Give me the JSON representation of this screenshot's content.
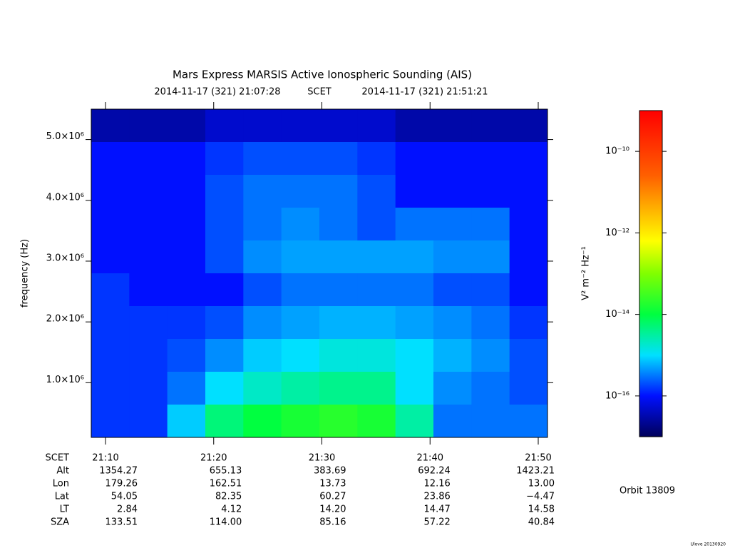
{
  "chart_data": {
    "type": "spectrogram",
    "title": "Mars Express MARSIS Active Ionospheric Sounding (AIS)",
    "start_time": "2014-11-17 (321) 21:07:28",
    "time_system": "SCET",
    "end_time": "2014-11-17 (321) 21:51:21",
    "ylabel": "frequency (Hz)",
    "ylim": [
      100000,
      5500000
    ],
    "yticks": [
      {
        "value": 1000000,
        "label": "1.0×10⁶"
      },
      {
        "value": 2000000,
        "label": "2.0×10⁶"
      },
      {
        "value": 3000000,
        "label": "3.0×10⁶"
      },
      {
        "value": 4000000,
        "label": "4.0×10⁶"
      },
      {
        "value": 5000000,
        "label": "5.0×10⁶"
      }
    ],
    "z": [
      [
        3e-17,
        3e-17,
        3e-17,
        5e-17,
        5e-17,
        5e-17,
        5e-17,
        5e-17,
        3e-17,
        3e-17,
        3e-17,
        3e-17
      ],
      [
        1e-16,
        1e-16,
        1e-16,
        1.5e-16,
        2e-16,
        2e-16,
        2e-16,
        1.5e-16,
        1e-16,
        1e-16,
        1e-16,
        1e-16
      ],
      [
        1e-16,
        1e-16,
        1e-16,
        2e-16,
        3e-16,
        3e-16,
        3e-16,
        2e-16,
        1e-16,
        1e-16,
        1e-16,
        1e-16
      ],
      [
        1e-16,
        1e-16,
        1e-16,
        2e-16,
        3e-16,
        4e-16,
        3e-16,
        2e-16,
        3e-16,
        3e-16,
        3e-16,
        1e-16
      ],
      [
        1e-16,
        1e-16,
        1e-16,
        2e-16,
        4e-16,
        5e-16,
        5e-16,
        5e-16,
        5e-16,
        4e-16,
        4e-16,
        1e-16
      ],
      [
        1.5e-16,
        1e-16,
        1e-16,
        1e-16,
        2e-16,
        3e-16,
        3e-16,
        3e-16,
        3e-16,
        2e-16,
        2e-16,
        1e-16
      ],
      [
        1.5e-16,
        1.5e-16,
        1.5e-16,
        2e-16,
        4e-16,
        5e-16,
        6e-16,
        6e-16,
        5e-16,
        4e-16,
        3e-16,
        1.5e-16
      ],
      [
        1.5e-16,
        1.5e-16,
        2e-16,
        4e-16,
        8e-16,
        1e-15,
        1.5e-15,
        1.5e-15,
        1e-15,
        6e-16,
        4e-16,
        2e-16
      ],
      [
        1.5e-16,
        1.5e-16,
        3e-16,
        1e-15,
        2e-15,
        3e-15,
        4e-15,
        4e-15,
        1e-15,
        4e-16,
        3e-16,
        2e-16
      ],
      [
        1.5e-16,
        1.5e-16,
        8e-16,
        5e-15,
        1e-14,
        1.5e-14,
        2e-14,
        1.5e-14,
        3e-15,
        3e-16,
        3e-16,
        3e-16
      ]
    ],
    "colorbar_label": "V² m⁻² Hz⁻¹",
    "zlim": [
      1e-17,
      1e-09
    ],
    "zscale": "log",
    "zticks": [
      {
        "value": 1e-10,
        "label": "10⁻¹⁰"
      },
      {
        "value": 1e-12,
        "label": "10⁻¹²"
      },
      {
        "value": 1e-14,
        "label": "10⁻¹⁴"
      },
      {
        "value": 1e-16,
        "label": "10⁻¹⁶"
      }
    ],
    "ephemeris": {
      "row_labels": [
        "SCET",
        "Alt",
        "Lon",
        "Lat",
        "LT",
        "SZA"
      ],
      "rows": [
        [
          "21:10",
          "21:20",
          "21:30",
          "21:40",
          "21:50"
        ],
        [
          "1354.27",
          "655.13",
          "383.69",
          "692.24",
          "1423.21"
        ],
        [
          "179.26",
          "162.51",
          "13.73",
          "12.16",
          "13.00"
        ],
        [
          "54.05",
          "82.35",
          "60.27",
          "23.86",
          "−4.47"
        ],
        [
          "2.84",
          "4.12",
          "14.20",
          "14.47",
          "14.58"
        ],
        [
          "133.51",
          "114.00",
          "85.16",
          "57.22",
          "40.84"
        ]
      ]
    },
    "orbit": "Orbit 13809",
    "footer": "Ulove 20130920"
  }
}
